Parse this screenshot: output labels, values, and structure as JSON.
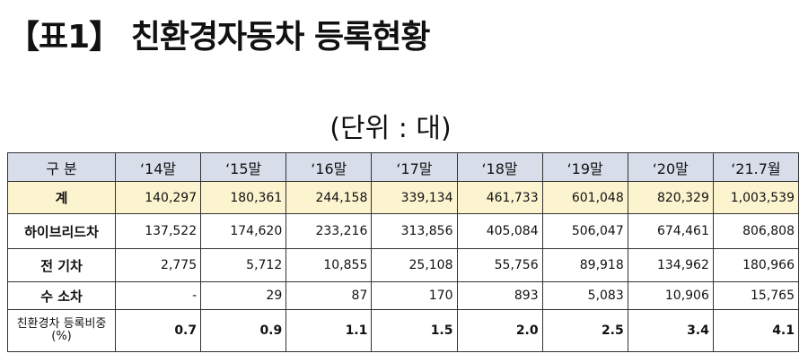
{
  "header": {
    "title": "【표1】 친환경자동차 등록현황",
    "unit": "(단위 : 대)"
  },
  "table": {
    "columns": [
      "구 분",
      "‘14말",
      "‘15말",
      "‘16말",
      "‘17말",
      "‘18말",
      "‘19말",
      "‘20말",
      "‘21.7월"
    ],
    "rows": [
      [
        "계",
        "140,297",
        "180,361",
        "244,158",
        "339,134",
        "461,733",
        "601,048",
        "820,329",
        "1,003,539"
      ],
      [
        "하이브리드차",
        "137,522",
        "174,620",
        "233,216",
        "313,856",
        "405,084",
        "506,047",
        "674,461",
        "806,808"
      ],
      [
        "전 기차",
        "2,775",
        "5,712",
        "10,855",
        "25,108",
        "55,756",
        "89,918",
        "134,962",
        "180,966"
      ],
      [
        "수 소차",
        "-",
        "29",
        "87",
        "170",
        "893",
        "5,083",
        "10,906",
        "15,765"
      ],
      [
        "친환경차 등록비중(%)",
        "0.7",
        "0.9",
        "1.1",
        "1.5",
        "2.0",
        "2.5",
        "3.4",
        "4.1"
      ]
    ]
  }
}
